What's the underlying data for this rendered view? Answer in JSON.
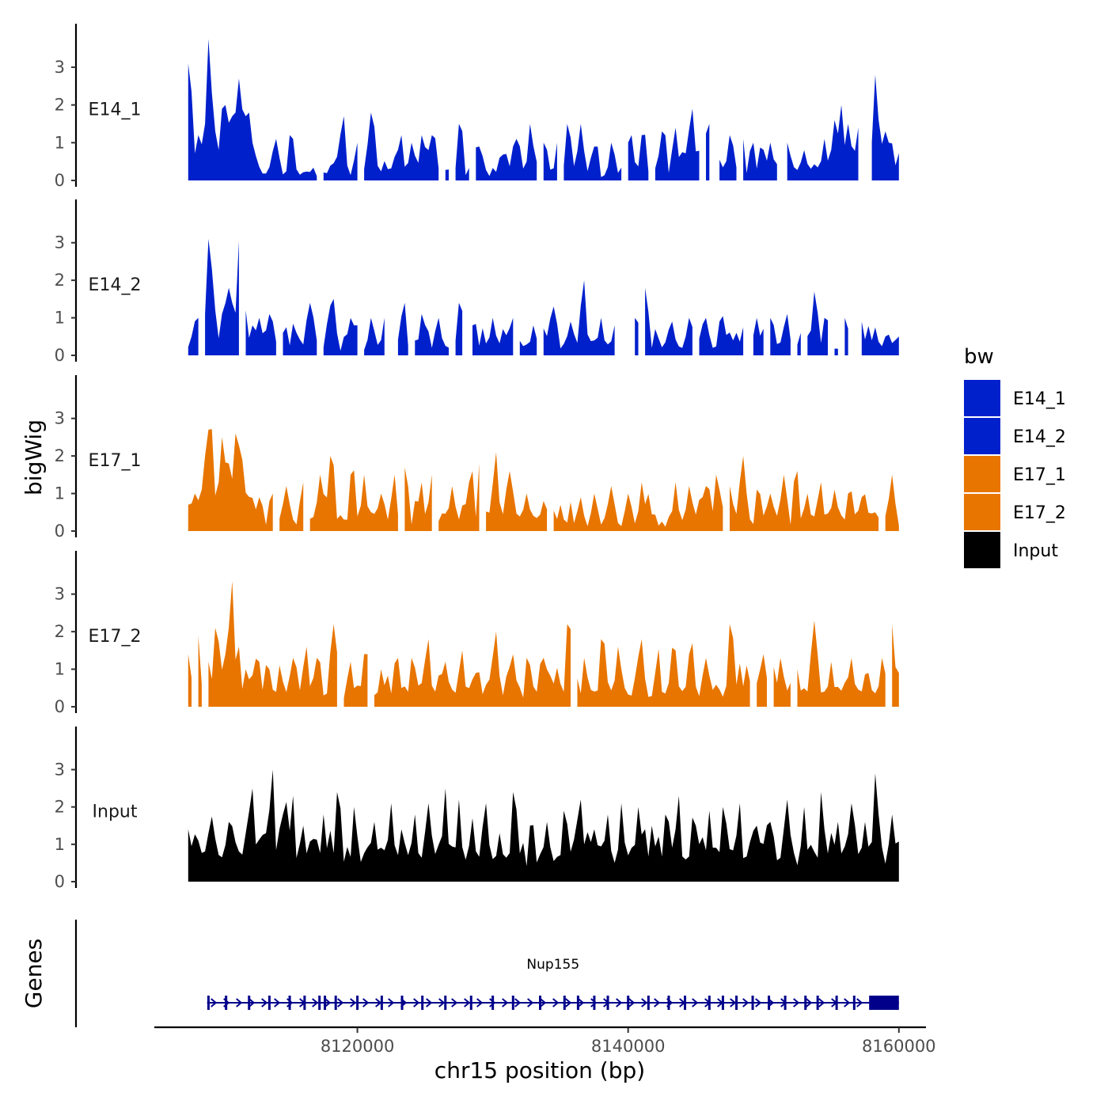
{
  "chart_data": {
    "type": "area",
    "ylabel": "bigWig",
    "xlabel": "chr15 position (bp)",
    "ylim": [
      0,
      3.9
    ],
    "yticks": [
      0,
      1,
      2,
      3
    ],
    "xlim": [
      8105000,
      8162000
    ],
    "xticks": [
      8120000,
      8140000,
      8160000
    ],
    "xtick_labels": [
      "8120000",
      "8140000",
      "8160000"
    ],
    "data_start": 8107500,
    "data_end": 8160000,
    "bin_size": 250,
    "legend": {
      "title": "bw",
      "entries": [
        {
          "label": "E14_1",
          "color": "#0020CC"
        },
        {
          "label": "E14_2",
          "color": "#0020CC"
        },
        {
          "label": "E17_1",
          "color": "#E87500"
        },
        {
          "label": "E17_2",
          "color": "#E87500"
        },
        {
          "label": "Input",
          "color": "#000000"
        }
      ]
    },
    "series": [
      {
        "name": "E14_1",
        "color": "#0020CC",
        "baseline": 0.15,
        "noise": 0.75,
        "gap_prob": 0.16,
        "seed": 11,
        "peaks": [
          [
            8107550,
            3.1
          ],
          [
            8108200,
            1.2
          ],
          [
            8108700,
            1.5
          ],
          [
            8109050,
            3.75
          ],
          [
            8109500,
            1.3
          ],
          [
            8110000,
            1.9
          ],
          [
            8110300,
            2.0
          ],
          [
            8110650,
            1.7
          ],
          [
            8111000,
            1.8
          ],
          [
            8111300,
            2.7
          ],
          [
            8111700,
            1.7
          ],
          [
            8112000,
            1.8
          ],
          [
            8112300,
            1.0
          ],
          [
            8114000,
            1.1
          ],
          [
            8115100,
            1.2
          ],
          [
            8118900,
            1.7
          ],
          [
            8120000,
            1.0
          ],
          [
            8121000,
            1.8
          ],
          [
            8123200,
            1.2
          ],
          [
            8124000,
            1.0
          ],
          [
            8124800,
            1.2
          ],
          [
            8125600,
            1.2
          ],
          [
            8127600,
            1.5
          ],
          [
            8128900,
            0.9
          ],
          [
            8130600,
            0.6
          ],
          [
            8131700,
            1.1
          ],
          [
            8132800,
            1.5
          ],
          [
            8133800,
            1.0
          ],
          [
            8134800,
            1.0
          ],
          [
            8135600,
            1.5
          ],
          [
            8136500,
            1.5
          ],
          [
            8137600,
            0.9
          ],
          [
            8138800,
            1.0
          ],
          [
            8140200,
            1.2
          ],
          [
            8141100,
            1.2
          ],
          [
            8142500,
            1.3
          ],
          [
            8143500,
            1.4
          ],
          [
            8144700,
            1.9
          ],
          [
            8145900,
            1.5
          ],
          [
            8147500,
            1.2
          ],
          [
            8148400,
            1.1
          ],
          [
            8149200,
            1.0
          ],
          [
            8150500,
            1.0
          ],
          [
            8151800,
            1.0
          ],
          [
            8153000,
            0.8
          ],
          [
            8154500,
            1.1
          ],
          [
            8155300,
            1.6
          ],
          [
            8155700,
            2.0
          ],
          [
            8156300,
            1.5
          ],
          [
            8157000,
            1.4
          ],
          [
            8157500,
            2.4
          ],
          [
            8158300,
            2.8
          ],
          [
            8158900,
            1.3
          ],
          [
            8159300,
            1.0
          ],
          [
            8159700,
            0.4
          ]
        ]
      },
      {
        "name": "E14_2",
        "color": "#0020CC",
        "baseline": 0.2,
        "noise": 0.7,
        "gap_prob": 0.14,
        "seed": 23,
        "peaks": [
          [
            8107800,
            0.5
          ],
          [
            8108300,
            1.0
          ],
          [
            8108800,
            1.1
          ],
          [
            8109100,
            3.1
          ],
          [
            8109400,
            1.2
          ],
          [
            8110000,
            1.1
          ],
          [
            8110400,
            1.8
          ],
          [
            8110800,
            1.4
          ],
          [
            8111300,
            3.05
          ],
          [
            8111700,
            1.2
          ],
          [
            8112300,
            0.8
          ],
          [
            8112800,
            1.0
          ],
          [
            8113500,
            1.1
          ],
          [
            8114500,
            0.6
          ],
          [
            8115400,
            0.6
          ],
          [
            8116500,
            1.4
          ],
          [
            8118200,
            1.5
          ],
          [
            8119700,
            0.8
          ],
          [
            8121000,
            1.0
          ],
          [
            8122000,
            1.0
          ],
          [
            8123400,
            1.4
          ],
          [
            8124800,
            1.1
          ],
          [
            8126000,
            1.0
          ],
          [
            8127600,
            1.4
          ],
          [
            8128500,
            0.8
          ],
          [
            8130000,
            1.0
          ],
          [
            8131400,
            1.0
          ],
          [
            8133000,
            0.8
          ],
          [
            8134400,
            1.3
          ],
          [
            8135800,
            0.9
          ],
          [
            8136700,
            2.0
          ],
          [
            8138000,
            1.0
          ],
          [
            8139000,
            0.8
          ],
          [
            8140500,
            1.0
          ],
          [
            8141300,
            1.8
          ],
          [
            8143200,
            0.9
          ],
          [
            8144500,
            1.0
          ],
          [
            8145700,
            1.0
          ],
          [
            8146800,
            0.9
          ],
          [
            8148000,
            0.6
          ],
          [
            8149500,
            1.0
          ],
          [
            8150600,
            1.0
          ],
          [
            8151700,
            1.1
          ],
          [
            8152800,
            0.6
          ],
          [
            8153800,
            1.7
          ],
          [
            8154600,
            1.0
          ],
          [
            8156000,
            1.0
          ],
          [
            8157200,
            0.9
          ],
          [
            8158000,
            0.4
          ],
          [
            8159100,
            0.5
          ],
          [
            8159900,
            0.5
          ]
        ]
      },
      {
        "name": "E17_1",
        "color": "#E87500",
        "baseline": 0.25,
        "noise": 0.8,
        "gap_prob": 0.05,
        "seed": 37,
        "peaks": [
          [
            8107600,
            0.7
          ],
          [
            8108000,
            1.0
          ],
          [
            8108400,
            1.1
          ],
          [
            8108700,
            2.0
          ],
          [
            8109100,
            2.7
          ],
          [
            8109700,
            1.3
          ],
          [
            8110100,
            2.5
          ],
          [
            8110600,
            1.8
          ],
          [
            8111100,
            2.6
          ],
          [
            8111500,
            1.9
          ],
          [
            8112800,
            0.9
          ],
          [
            8113700,
            1.0
          ],
          [
            8114700,
            1.2
          ],
          [
            8116000,
            1.3
          ],
          [
            8117300,
            1.5
          ],
          [
            8118100,
            2.0
          ],
          [
            8119600,
            1.5
          ],
          [
            8120500,
            1.5
          ],
          [
            8121800,
            1.0
          ],
          [
            8122700,
            1.5
          ],
          [
            8123500,
            1.7
          ],
          [
            8124700,
            1.3
          ],
          [
            8125500,
            1.5
          ],
          [
            8127000,
            1.2
          ],
          [
            8128400,
            1.6
          ],
          [
            8129100,
            1.8
          ],
          [
            8130200,
            2.1
          ],
          [
            8131200,
            1.6
          ],
          [
            8132500,
            1.0
          ],
          [
            8133800,
            0.8
          ],
          [
            8135000,
            0.7
          ],
          [
            8136500,
            0.9
          ],
          [
            8137500,
            1.0
          ],
          [
            8138700,
            1.2
          ],
          [
            8140000,
            1.0
          ],
          [
            8141000,
            1.3
          ],
          [
            8143500,
            1.3
          ],
          [
            8144500,
            1.2
          ],
          [
            8145700,
            1.2
          ],
          [
            8146600,
            1.5
          ],
          [
            8147500,
            1.2
          ],
          [
            8148500,
            2.0
          ],
          [
            8149600,
            1.1
          ],
          [
            8150500,
            1.0
          ],
          [
            8151500,
            1.5
          ],
          [
            8152400,
            1.6
          ],
          [
            8153200,
            1.0
          ],
          [
            8154200,
            1.3
          ],
          [
            8155300,
            1.1
          ],
          [
            8156300,
            1.0
          ],
          [
            8157200,
            0.9
          ],
          [
            8158200,
            0.5
          ],
          [
            8159500,
            1.5
          ]
        ]
      },
      {
        "name": "E17_2",
        "color": "#E87500",
        "baseline": 0.3,
        "noise": 0.9,
        "gap_prob": 0.05,
        "seed": 53,
        "peaks": [
          [
            8107500,
            1.4
          ],
          [
            8108200,
            1.9
          ],
          [
            8109000,
            1.2
          ],
          [
            8109600,
            2.1
          ],
          [
            8110200,
            1.4
          ],
          [
            8110700,
            3.35
          ],
          [
            8111200,
            1.6
          ],
          [
            8111800,
            1.0
          ],
          [
            8112700,
            1.2
          ],
          [
            8113500,
            1.0
          ],
          [
            8114300,
            1.1
          ],
          [
            8115200,
            1.3
          ],
          [
            8116200,
            1.6
          ],
          [
            8117100,
            1.3
          ],
          [
            8118300,
            2.2
          ],
          [
            8119500,
            1.2
          ],
          [
            8120600,
            1.4
          ],
          [
            8121800,
            1.0
          ],
          [
            8122900,
            1.3
          ],
          [
            8124100,
            1.3
          ],
          [
            8125200,
            1.8
          ],
          [
            8126400,
            1.2
          ],
          [
            8127700,
            1.5
          ],
          [
            8128700,
            0.9
          ],
          [
            8130200,
            2.0
          ],
          [
            8131400,
            1.4
          ],
          [
            8132600,
            1.3
          ],
          [
            8133800,
            1.3
          ],
          [
            8135600,
            2.2
          ],
          [
            8136800,
            1.3
          ],
          [
            8138100,
            1.8
          ],
          [
            8139300,
            1.6
          ],
          [
            8141000,
            1.8
          ],
          [
            8142100,
            0.9
          ],
          [
            8143400,
            1.5
          ],
          [
            8144600,
            1.4
          ],
          [
            8145800,
            1.3
          ],
          [
            8147600,
            2.2
          ],
          [
            8148800,
            1.1
          ],
          [
            8150000,
            1.4
          ],
          [
            8151300,
            1.3
          ],
          [
            8152400,
            1.0
          ],
          [
            8153800,
            2.3
          ],
          [
            8155000,
            1.2
          ],
          [
            8156500,
            1.3
          ],
          [
            8157700,
            0.9
          ],
          [
            8158800,
            1.3
          ],
          [
            8159500,
            2.2
          ],
          [
            8159900,
            0.9
          ]
        ]
      },
      {
        "name": "Input",
        "color": "#000000",
        "baseline": 0.7,
        "noise": 0.9,
        "gap_prob": 0.0,
        "seed": 71,
        "peaks": [
          [
            8107500,
            1.4
          ],
          [
            8108300,
            1.1
          ],
          [
            8109000,
            1.3
          ],
          [
            8110500,
            1.6
          ],
          [
            8111700,
            1.3
          ],
          [
            8112200,
            2.5
          ],
          [
            8113200,
            1.3
          ],
          [
            8113700,
            3.0
          ],
          [
            8114600,
            1.8
          ],
          [
            8115200,
            2.3
          ],
          [
            8116000,
            1.5
          ],
          [
            8117500,
            1.8
          ],
          [
            8118600,
            2.4
          ],
          [
            8119800,
            2.0
          ],
          [
            8121200,
            1.6
          ],
          [
            8122500,
            2.1
          ],
          [
            8123300,
            1.4
          ],
          [
            8124200,
            1.8
          ],
          [
            8125300,
            2.1
          ],
          [
            8126500,
            2.5
          ],
          [
            8127500,
            2.2
          ],
          [
            8128500,
            1.7
          ],
          [
            8129500,
            2.1
          ],
          [
            8130500,
            1.3
          ],
          [
            8131600,
            2.4
          ],
          [
            8132800,
            1.5
          ],
          [
            8134000,
            1.6
          ],
          [
            8135300,
            1.9
          ],
          [
            8136400,
            2.2
          ],
          [
            8137400,
            1.4
          ],
          [
            8138500,
            1.8
          ],
          [
            8139500,
            2.1
          ],
          [
            8140800,
            2.0
          ],
          [
            8141800,
            1.5
          ],
          [
            8142800,
            1.8
          ],
          [
            8143700,
            2.3
          ],
          [
            8144900,
            1.5
          ],
          [
            8146000,
            1.9
          ],
          [
            8147100,
            2.0
          ],
          [
            8148200,
            2.1
          ],
          [
            8149400,
            1.5
          ],
          [
            8150600,
            1.6
          ],
          [
            8151800,
            2.2
          ],
          [
            8153000,
            2.0
          ],
          [
            8154300,
            2.4
          ],
          [
            8155500,
            1.6
          ],
          [
            8156600,
            2.1
          ],
          [
            8157500,
            1.6
          ],
          [
            8158300,
            2.9
          ],
          [
            8159500,
            1.8
          ]
        ]
      }
    ],
    "genes": {
      "label": "Genes",
      "items": [
        {
          "name": "Nup155",
          "strand": "+",
          "start": 8108900,
          "end": 8160000,
          "color": "#00008B",
          "exons": [
            8109000,
            8110300,
            8112000,
            8113500,
            8115000,
            8116100,
            8117200,
            8117600,
            8118400,
            8120000,
            8121800,
            8123300,
            8124800,
            8126500,
            8128400,
            8130000,
            8131500,
            8133500,
            8135300,
            8136300,
            8137500,
            8138500,
            8140000,
            8141500,
            8143000,
            8144200,
            8146000,
            8147000,
            8148000,
            8149200,
            8150400,
            8151600,
            8153100,
            8154000,
            8155400,
            8156700
          ],
          "utr_start": 8157800,
          "utr_end": 8160000
        }
      ]
    }
  }
}
